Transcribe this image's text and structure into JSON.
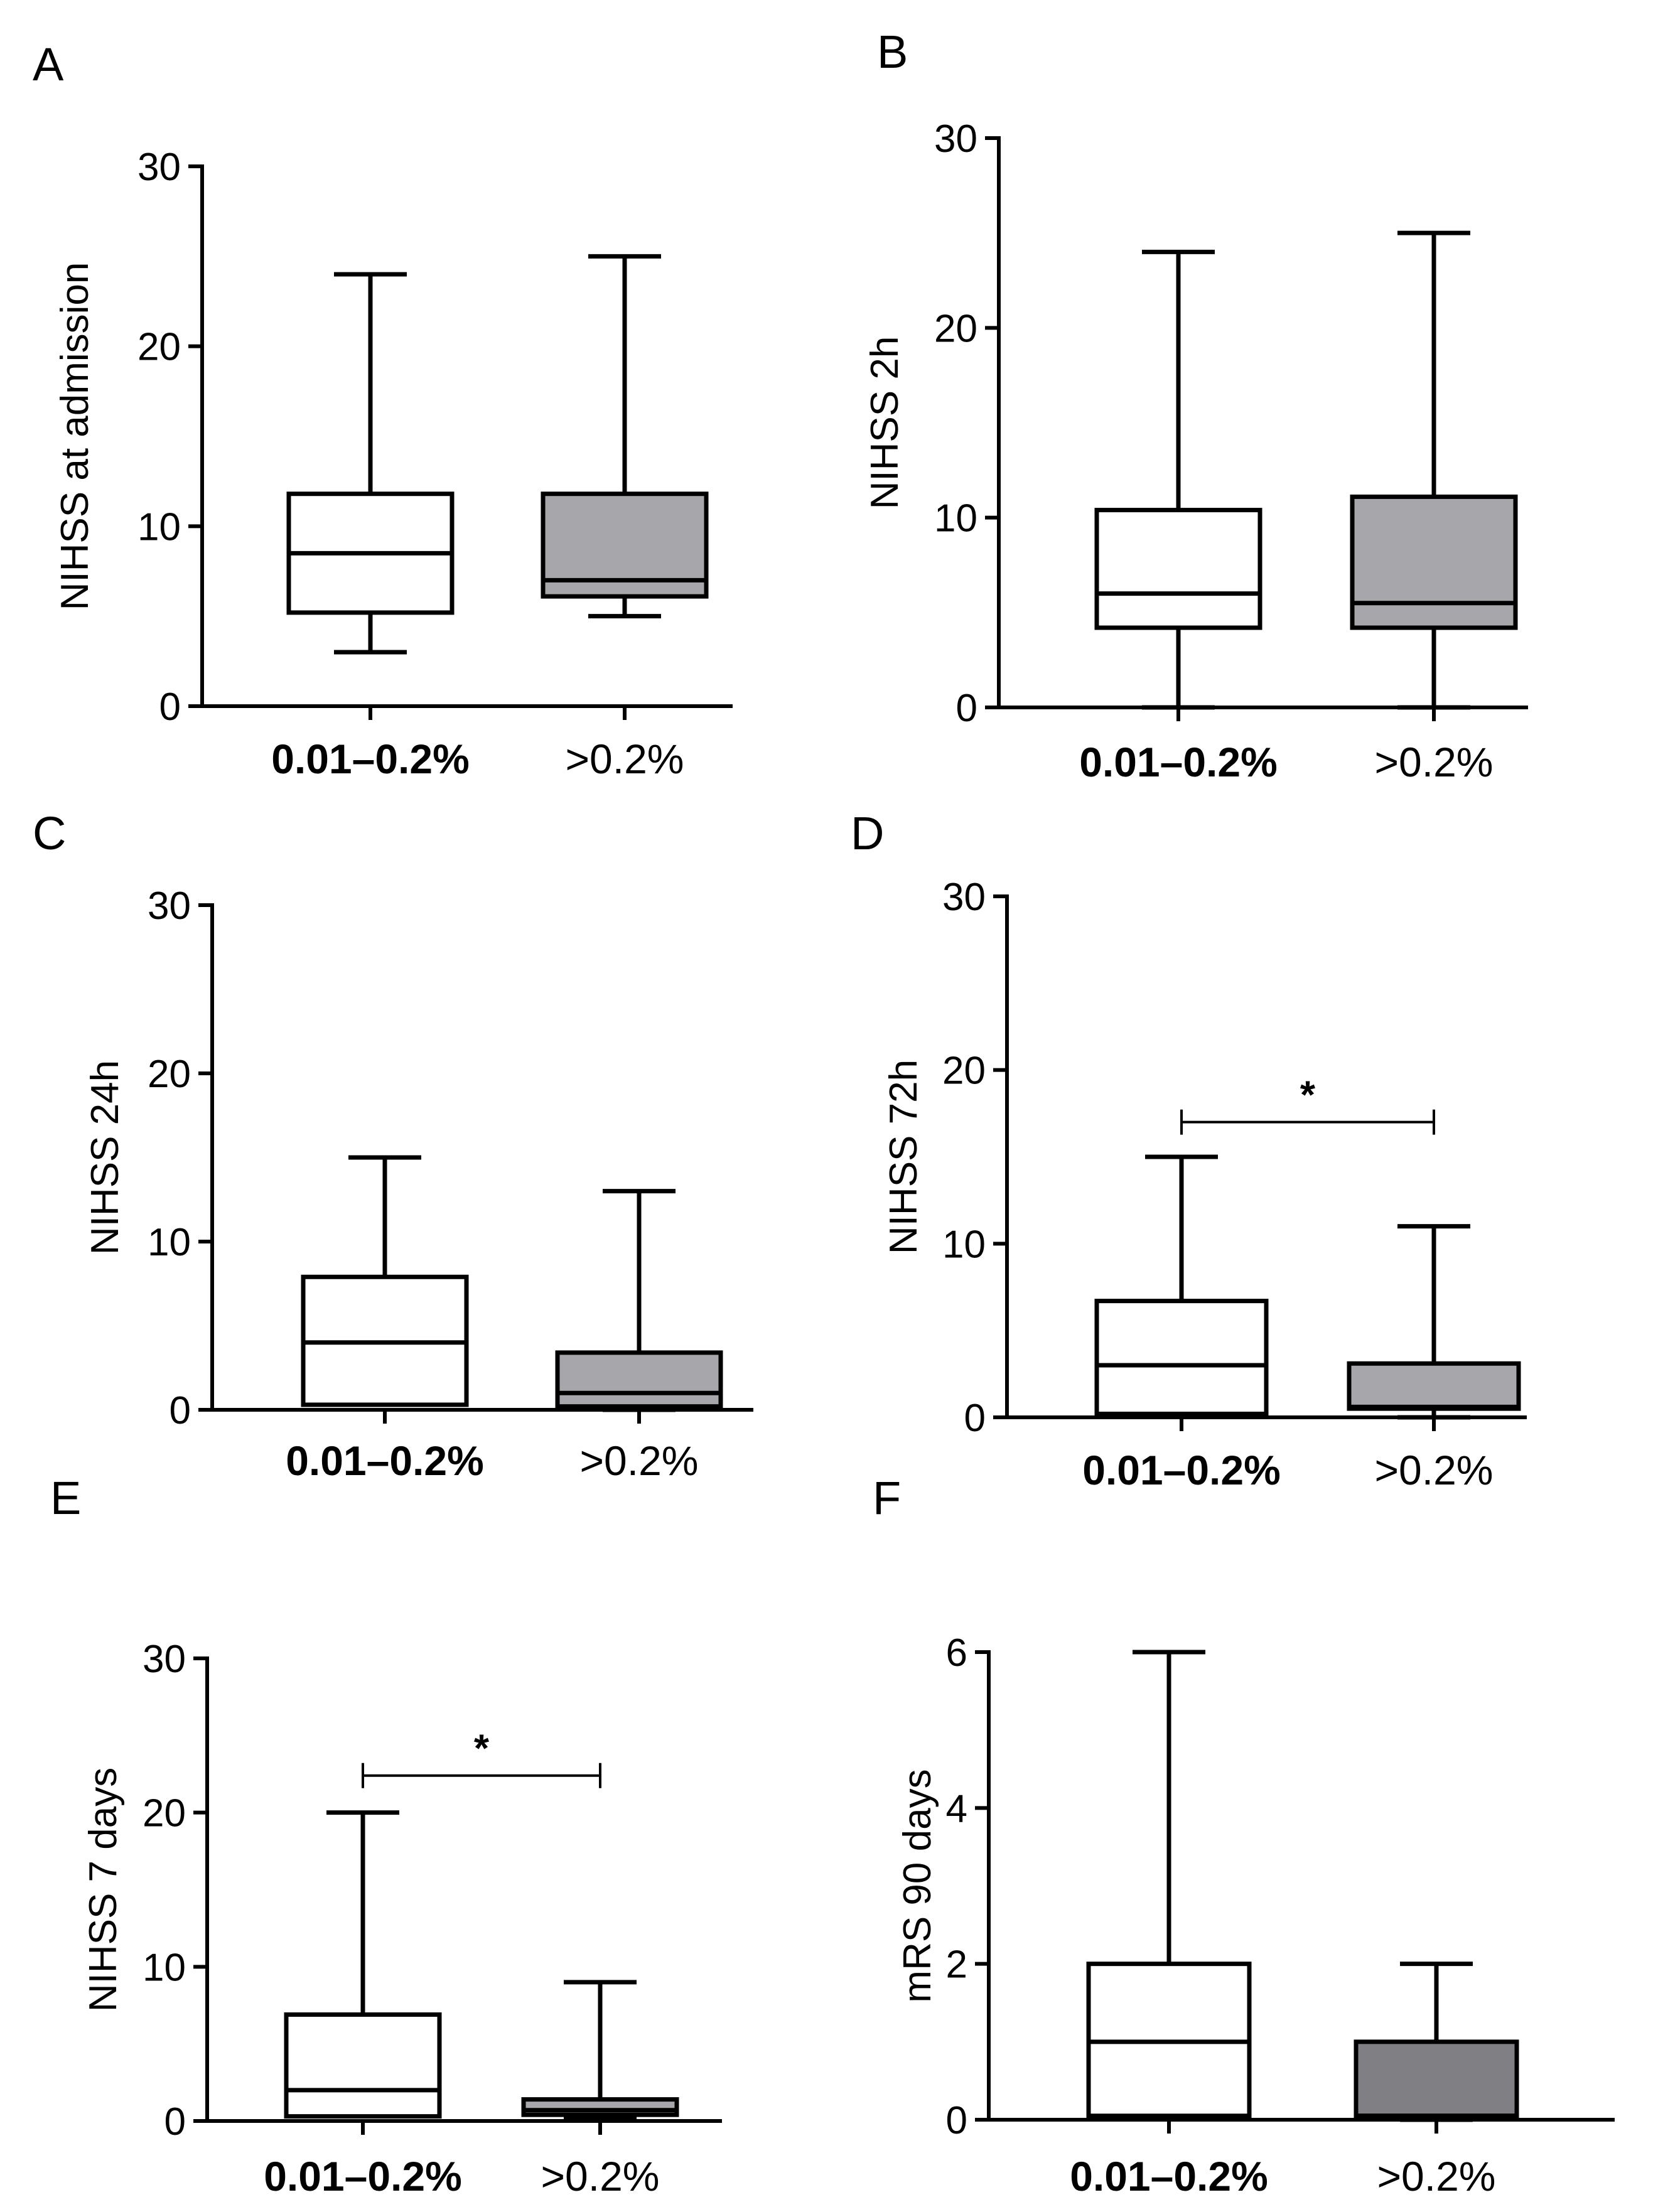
{
  "figure": {
    "colors": {
      "axis": "#000000",
      "box_low": "#ffffff",
      "box_high": "#a7a6ab",
      "box_high_mrs": "#807f84"
    }
  },
  "chart_data": [
    {
      "type": "box",
      "panel": "A",
      "ylabel": "NIHSS at admission",
      "ylim": [
        0,
        30
      ],
      "yticks": [
        0,
        10,
        20,
        30
      ],
      "categories": [
        "0.01–0.2%",
        ">0.2%"
      ],
      "boxes": [
        {
          "min": 3,
          "q1": 5.2,
          "median": 8.5,
          "q3": 11.8,
          "max": 24
        },
        {
          "min": 5,
          "q1": 6.1,
          "median": 7,
          "q3": 11.8,
          "max": 25
        }
      ]
    },
    {
      "type": "box",
      "panel": "B",
      "ylabel": "NIHSS 2h",
      "ylim": [
        0,
        30
      ],
      "yticks": [
        0,
        10,
        20,
        30
      ],
      "categories": [
        "0.01–0.2%",
        ">0.2%"
      ],
      "boxes": [
        {
          "min": 0,
          "q1": 4.2,
          "median": 6,
          "q3": 10.4,
          "max": 24
        },
        {
          "min": 0,
          "q1": 4.2,
          "median": 5.5,
          "q3": 11.1,
          "max": 25
        }
      ]
    },
    {
      "type": "box",
      "panel": "C",
      "ylabel": "NIHSS 24h",
      "ylim": [
        0,
        30
      ],
      "yticks": [
        0,
        10,
        20,
        30
      ],
      "categories": [
        "0.01–0.2%",
        ">0.2%"
      ],
      "boxes": [
        {
          "min": 0.3,
          "q1": 0.3,
          "median": 4,
          "q3": 7.9,
          "max": 15
        },
        {
          "min": 0,
          "q1": 0.2,
          "median": 1,
          "q3": 3.4,
          "max": 13
        }
      ]
    },
    {
      "type": "box",
      "panel": "D",
      "ylabel": "NIHSS 72h",
      "ylim": [
        0,
        30
      ],
      "yticks": [
        0,
        10,
        20,
        30
      ],
      "categories": [
        "0.01–0.2%",
        ">0.2%"
      ],
      "boxes": [
        {
          "min": 0.2,
          "q1": 0.2,
          "median": 3,
          "q3": 6.7,
          "max": 15
        },
        {
          "min": 0,
          "q1": 0.5,
          "median": 0.6,
          "q3": 3.1,
          "max": 11
        }
      ],
      "significance": {
        "label": "*",
        "y": 17
      }
    },
    {
      "type": "box",
      "panel": "E",
      "ylabel": "NIHSS 7 days",
      "ylim": [
        0,
        30
      ],
      "yticks": [
        0,
        10,
        20,
        30
      ],
      "categories": [
        "0.01–0.2%",
        ">0.2%"
      ],
      "boxes": [
        {
          "min": 0.3,
          "q1": 0.3,
          "median": 2,
          "q3": 6.9,
          "max": 20
        },
        {
          "min": 0.2,
          "q1": 0.4,
          "median": 0.7,
          "q3": 1.4,
          "max": 9
        }
      ],
      "significance": {
        "label": "*",
        "y": 22.4
      }
    },
    {
      "type": "box",
      "panel": "F",
      "ylabel": "mRS 90 days",
      "ylim": [
        0,
        6
      ],
      "yticks": [
        0,
        2,
        4,
        6
      ],
      "categories": [
        "0.01–0.2%",
        ">0.2%"
      ],
      "boxes": [
        {
          "min": 0.05,
          "q1": 0.05,
          "median": 1,
          "q3": 2,
          "max": 6
        },
        {
          "min": 0,
          "q1": 0.05,
          "median": 0.05,
          "q3": 1,
          "max": 2
        }
      ]
    }
  ]
}
